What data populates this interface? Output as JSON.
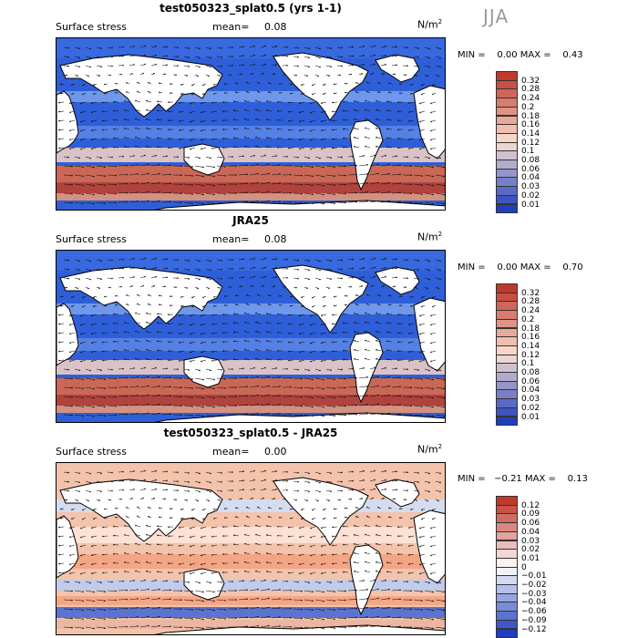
{
  "season": "JJA",
  "panels": [
    {
      "title": "test050323_splat0.5 (yrs 1-1)",
      "field": "Surface stress",
      "mean_label": "mean=",
      "mean": "0.08",
      "units": "N/m",
      "units_exp": "2",
      "minmax": "MIN =    0.00 MAX =    0.43",
      "scale": "abs",
      "levels": [
        "0.32",
        "0.28",
        "0.24",
        "0.2",
        "0.18",
        "0.16",
        "0.14",
        "0.12",
        "0.1",
        "0.08",
        "0.06",
        "0.04",
        "0.03",
        "0.02",
        "0.01"
      ],
      "colors": {
        "high": "#c0392b",
        "mid": "#fbe1d2",
        "low": "#1f3fbf"
      }
    },
    {
      "title": "JRA25",
      "field": "Surface stress",
      "mean_label": "mean=",
      "mean": "0.08",
      "units": "N/m",
      "units_exp": "2",
      "minmax": "MIN =    0.00 MAX =    0.70",
      "scale": "abs",
      "levels": [
        "0.32",
        "0.28",
        "0.24",
        "0.2",
        "0.18",
        "0.16",
        "0.14",
        "0.12",
        "0.1",
        "0.08",
        "0.06",
        "0.04",
        "0.03",
        "0.02",
        "0.01"
      ],
      "colors": {
        "high": "#c0392b",
        "mid": "#fbe1d2",
        "low": "#1f3fbf"
      }
    },
    {
      "title": "test050323_splat0.5 - JRA25",
      "field": "Surface stress",
      "mean_label": "mean=",
      "mean": "0.00",
      "units": "N/m",
      "units_exp": "2",
      "minmax": "MIN =   −0.21 MAX =    0.13",
      "scale": "diff",
      "levels": [
        "0.12",
        "0.09",
        "0.06",
        "0.04",
        "0.03",
        "0.02",
        "0.01",
        "0",
        "−0.01",
        "−0.02",
        "−0.03",
        "−0.04",
        "−0.06",
        "−0.09",
        "−0.12"
      ],
      "colors": {
        "high": "#c0392b",
        "mid": "#ffffff",
        "low": "#1f3fbf"
      }
    }
  ]
}
